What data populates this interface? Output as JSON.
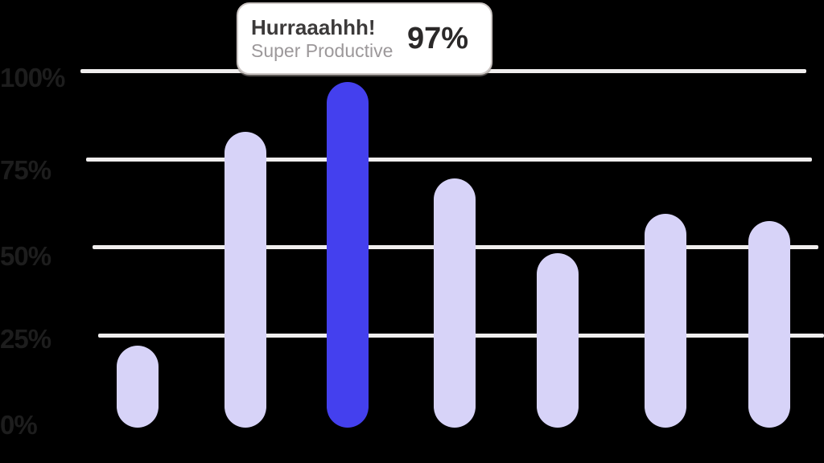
{
  "tooltip": {
    "title": "Hurraaahhh!",
    "subtitle": "Super Productive",
    "value": "97%"
  },
  "chart_data": {
    "type": "bar",
    "values": [
      23,
      83,
      97,
      70,
      49,
      60,
      58
    ],
    "unit": "%",
    "yticks": [
      "100%",
      "75%",
      "50%",
      "25%",
      "0%"
    ],
    "ylim": [
      0,
      100
    ],
    "grid": "horizontal",
    "legend": "none",
    "highlighted_index": 2,
    "highlighted_value_label": "97%"
  },
  "colors": {
    "background": "#000000",
    "bar": "#d7d3f8",
    "bar_highlight": "#4440ee",
    "gridline": "#f0eeee",
    "axis_label": "#1d1d1d",
    "tooltip_bg": "#ffffff",
    "tooltip_border": "#ccc6c4",
    "tooltip_title": "#3c3a3a",
    "tooltip_subtitle": "#9c989a",
    "tooltip_value": "#2b2929"
  }
}
